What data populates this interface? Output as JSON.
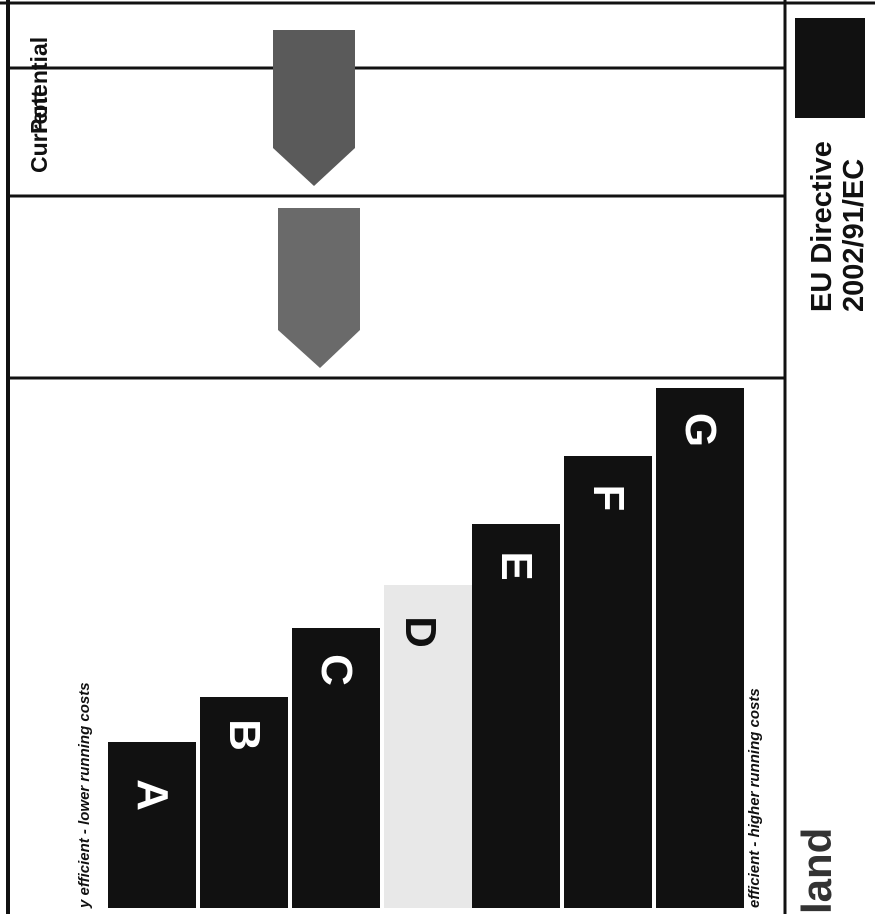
{
  "label": {
    "columns": {
      "current": "Current",
      "potential": "Potential"
    },
    "notes": {
      "top": "y efficient - lower running costs",
      "bottom": "efficient - higher running costs"
    },
    "bands": [
      {
        "letter": "A",
        "color": "#111111"
      },
      {
        "letter": "B",
        "color": "#111111"
      },
      {
        "letter": "C",
        "color": "#111111"
      },
      {
        "letter": "D",
        "color": "#e8e8e8"
      },
      {
        "letter": "E",
        "color": "#111111"
      },
      {
        "letter": "F",
        "color": "#111111"
      },
      {
        "letter": "G",
        "color": "#111111"
      }
    ],
    "directive": {
      "line1": "EU Directive",
      "line2": "2002/91/EC"
    },
    "title_fragment": "land",
    "arrow_colors": {
      "current": "#6a6a6a",
      "potential": "#5a5a5a"
    }
  }
}
